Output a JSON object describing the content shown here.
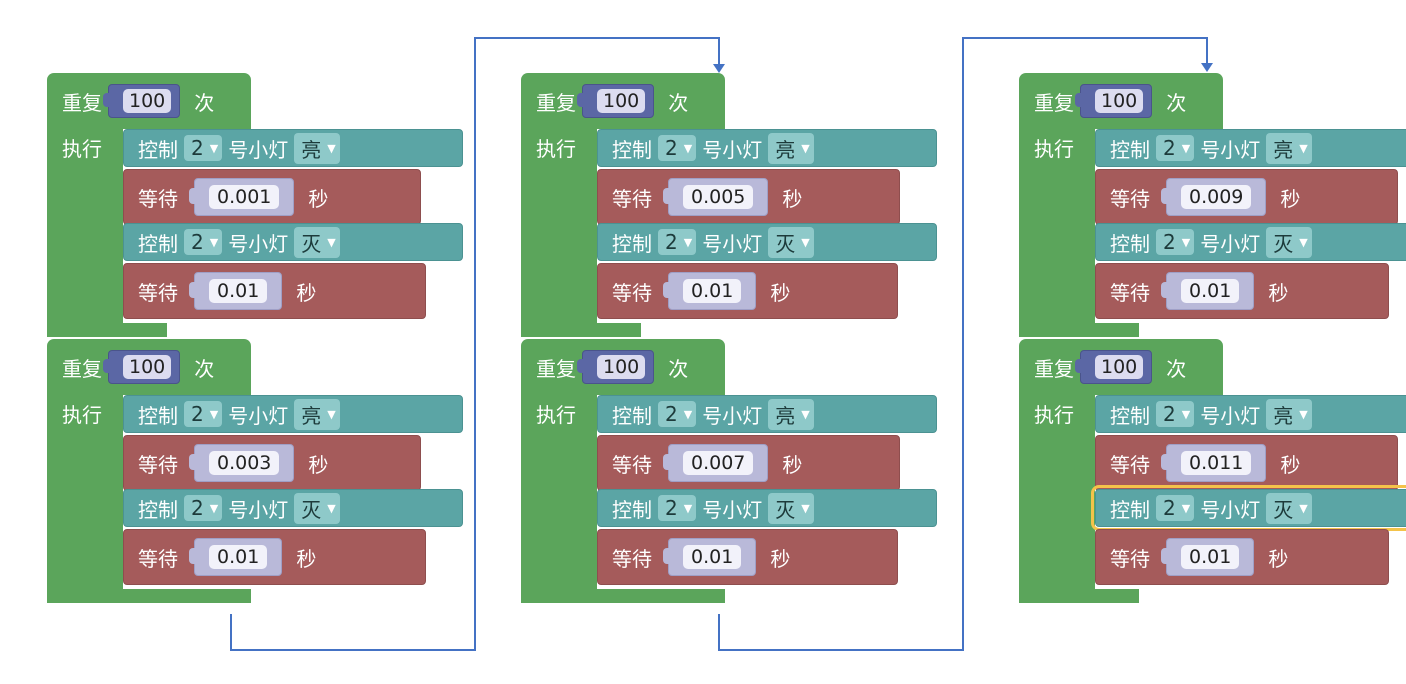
{
  "labels": {
    "repeat": "重复",
    "times": "次",
    "do": "执行",
    "control": "控制",
    "lamp_suffix": "号小灯",
    "wait": "等待",
    "seconds": "秒"
  },
  "repeat_count": "100",
  "pin": "2",
  "state_on": "亮",
  "state_off": "灭",
  "waits": [
    "0.001",
    "0.003",
    "0.005",
    "0.007",
    "0.009",
    "0.011"
  ],
  "wait_off": "0.01",
  "colors": {
    "loop": "#5ba55b",
    "control": "#5ba5a5",
    "wait": "#a55b5b",
    "number": "#5b67a5",
    "highlight": "#f4c34a",
    "arrow": "#4472c4"
  },
  "icons": {
    "dropdown": "triangle-down-icon",
    "arrow": "flow-arrow-icon"
  }
}
